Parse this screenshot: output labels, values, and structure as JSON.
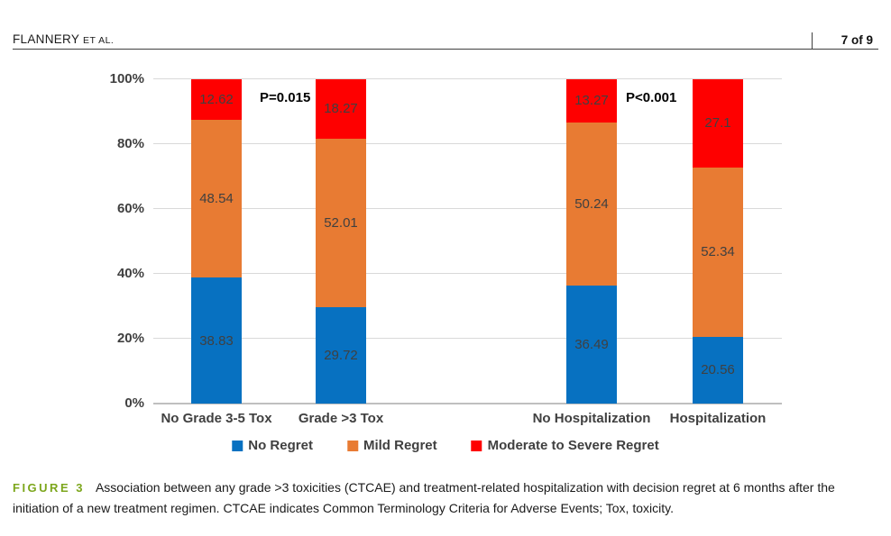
{
  "header": {
    "running_head": "FLANNERY",
    "running_head_suffix": "ET AL.",
    "page_label": "7 of 9"
  },
  "chart_data": {
    "type": "bar",
    "stacked": true,
    "title": "",
    "xlabel": "",
    "ylabel": "",
    "categories": [
      "No Grade 3-5 Tox",
      "Grade >3 Tox",
      "No Hospitalization",
      "Hospitalization"
    ],
    "series": [
      {
        "name": "No Regret",
        "color": "#0771C1",
        "values": [
          38.83,
          29.72,
          36.49,
          20.56
        ]
      },
      {
        "name": "Mild Regret",
        "color": "#E87B33",
        "values": [
          48.54,
          52.01,
          50.24,
          52.34
        ]
      },
      {
        "name": "Moderate to Severe Regret",
        "color": "#FE0000",
        "values": [
          12.62,
          18.27,
          13.27,
          27.1
        ]
      }
    ],
    "annotations": [
      {
        "text": "P=0.015",
        "between_categories": [
          0,
          1
        ]
      },
      {
        "text": "P<0.001",
        "between_categories": [
          2,
          3
        ]
      }
    ],
    "y_ticks": [
      "0%",
      "20%",
      "40%",
      "60%",
      "80%",
      "100%"
    ],
    "ylim": [
      0,
      100
    ],
    "grid": true,
    "legend_position": "bottom",
    "value_labels_shown": true
  },
  "caption": {
    "label": "FIGURE 3",
    "text": "Association between any grade >3 toxicities (CTCAE) and treatment-related hospitalization with decision regret at 6 months after the initiation of a new treatment regimen. CTCAE indicates Common Terminology Criteria for Adverse Events; Tox, toxicity."
  }
}
